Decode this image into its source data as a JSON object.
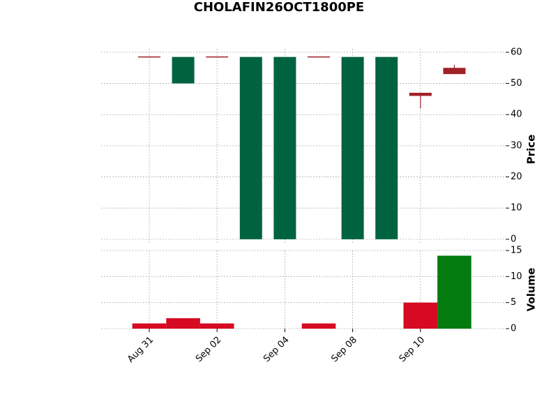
{
  "chart_data": {
    "type": "candlestick",
    "title": "CHOLAFIN26OCT1800PE",
    "categories": [
      "Aug 31",
      null,
      "Sep 02",
      null,
      "Sep 04",
      null,
      "Sep 08",
      null,
      "Sep 10",
      null
    ],
    "open": [
      58.5,
      50,
      58.5,
      0,
      0,
      58.5,
      0,
      0,
      47,
      55
    ],
    "high": [
      58.5,
      58.5,
      58.5,
      58.5,
      58.5,
      58.5,
      58.5,
      58.5,
      47,
      56
    ],
    "low": [
      58.5,
      50,
      58.5,
      0,
      0,
      58.5,
      0,
      0,
      42,
      53
    ],
    "close": [
      58.5,
      58.5,
      58.5,
      58.5,
      58.5,
      58.5,
      58.5,
      58.5,
      46,
      53
    ],
    "up_color": "#006340",
    "down_color": "#a02128",
    "ylabel": "Price",
    "ylim": [
      -1.6,
      61.1
    ],
    "yticks": [
      0,
      10,
      20,
      30,
      40,
      50,
      60
    ],
    "grid": true,
    "volume": {
      "ylabel": "Volume",
      "values": [
        1,
        2,
        1,
        0,
        0,
        1,
        0,
        0,
        5,
        14
      ],
      "colors": [
        "#d60a22",
        "#d60a22",
        "#d60a22",
        "#d60a22",
        "#d60a22",
        "#d60a22",
        "#d60a22",
        "#d60a22",
        "#d60a22",
        "#037b0f"
      ],
      "ylim": [
        0,
        15
      ],
      "yticks": [
        0,
        5,
        10,
        15
      ]
    }
  }
}
